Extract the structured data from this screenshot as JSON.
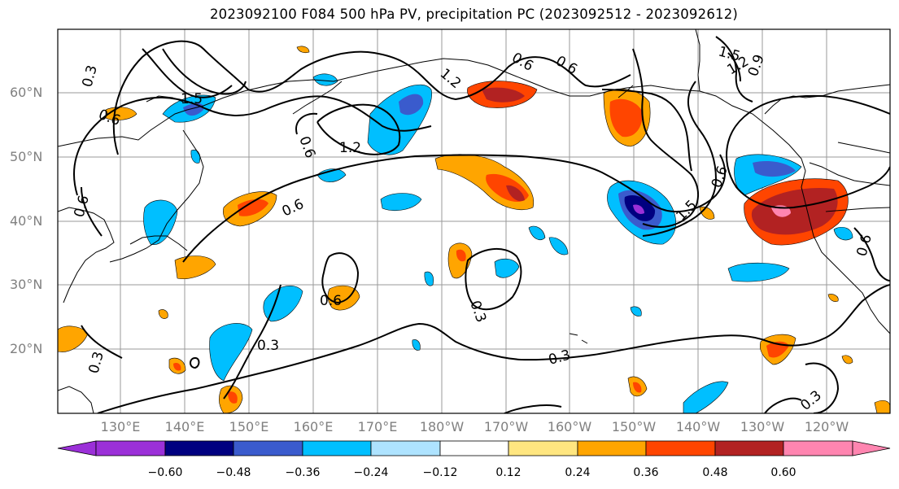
{
  "title": "2023092100 F084 500 hPa PV, precipitation PC (2023092512 - 2023092612)",
  "lat_labels": [
    "60°N",
    "50°N",
    "40°N",
    "30°N",
    "20°N"
  ],
  "lon_labels": [
    "130°E",
    "140°E",
    "150°E",
    "160°E",
    "170°E",
    "180°W",
    "170°W",
    "160°W",
    "150°W",
    "140°W",
    "130°W",
    "120°W"
  ],
  "contour_labels": [
    "0.3",
    "1.5",
    "0.6",
    "1.2",
    "0.6",
    "1.2",
    "0.6",
    "0.6",
    "1.5",
    "1.2",
    "0.9",
    "0.6",
    "0.6",
    "1.5",
    "0.6",
    "0.6",
    "0.3",
    "0.6",
    "0.3",
    "0.3",
    "0.3",
    "0.3"
  ],
  "colorbar": {
    "tick_labels": [
      "−0.60",
      "−0.48",
      "−0.36",
      "−0.24",
      "−0.12",
      "0.12",
      "0.24",
      "0.36",
      "0.48",
      "0.60"
    ],
    "colors": [
      "#9b30d8",
      "#000080",
      "#3a5bcd",
      "#00bfff",
      "#aee3ff",
      "#ffffff",
      "#ffe680",
      "#ffa500",
      "#ff4500",
      "#b22222",
      "#ff85b0"
    ]
  }
}
